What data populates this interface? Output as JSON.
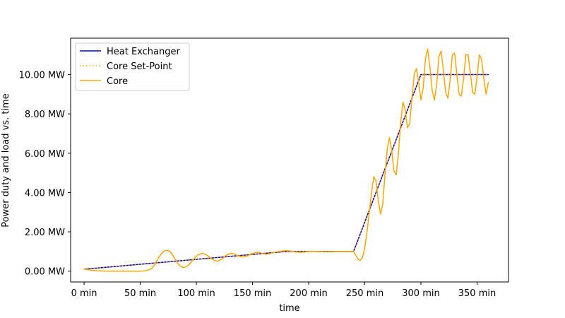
{
  "chart_data": {
    "type": "line",
    "title": "",
    "xlabel": "time",
    "ylabel": "Power duty and load vs. time",
    "xlim": [
      -12,
      378
    ],
    "ylim": [
      -0.55,
      11.85
    ],
    "grid": false,
    "legend_position": "upper-left",
    "x_ticks": [
      0,
      50,
      100,
      150,
      200,
      250,
      300,
      350
    ],
    "x_tick_labels": [
      "0 min",
      "50 min",
      "100 min",
      "150 min",
      "200 min",
      "250 min",
      "300 min",
      "350 min"
    ],
    "y_ticks": [
      0,
      2,
      4,
      6,
      8,
      10
    ],
    "y_tick_labels": [
      "0.00 MW",
      "2.00 MW",
      "4.00 MW",
      "6.00 MW",
      "8.00 MW",
      "10.00 MW"
    ],
    "series": [
      {
        "name": "Heat Exchanger",
        "color": "#0000cc",
        "style": "solid",
        "x": [
          0,
          180,
          240,
          300,
          360
        ],
        "y": [
          0.1,
          1.0,
          1.0,
          10.0,
          10.0
        ]
      },
      {
        "name": "Core Set-Point",
        "color": "#ffa500",
        "style": "dotted",
        "x": [
          0,
          180,
          240,
          300,
          360
        ],
        "y": [
          0.1,
          1.0,
          1.0,
          10.0,
          10.0
        ]
      },
      {
        "name": "Core",
        "color": "#ffa500",
        "style": "solid",
        "x": [
          0,
          10,
          20,
          30,
          40,
          50,
          55,
          60,
          63,
          66,
          69,
          72,
          75,
          78,
          81,
          84,
          87,
          90,
          93,
          96,
          99,
          102,
          105,
          108,
          111,
          114,
          117,
          120,
          123,
          126,
          129,
          132,
          135,
          138,
          141,
          144,
          147,
          150,
          153,
          156,
          159,
          162,
          165,
          168,
          171,
          174,
          177,
          180,
          184,
          188,
          192,
          196,
          200,
          204,
          208,
          212,
          216,
          220,
          225,
          230,
          235,
          240,
          242,
          244,
          246,
          248,
          250,
          252,
          254,
          256,
          258,
          260,
          262,
          264,
          266,
          268,
          270,
          272,
          274,
          276,
          278,
          280,
          282,
          284,
          286,
          288,
          290,
          292,
          294,
          296,
          298,
          300,
          302,
          304,
          306,
          308,
          310,
          312,
          314,
          316,
          318,
          320,
          322,
          324,
          326,
          328,
          330,
          332,
          334,
          336,
          338,
          340,
          342,
          344,
          346,
          348,
          350,
          352,
          354,
          356,
          358,
          360
        ],
        "y": [
          0.1,
          0.02,
          0.0,
          0.0,
          0.0,
          0.0,
          0.02,
          0.12,
          0.35,
          0.65,
          0.9,
          1.05,
          1.05,
          0.9,
          0.62,
          0.35,
          0.2,
          0.2,
          0.3,
          0.5,
          0.7,
          0.85,
          0.9,
          0.86,
          0.75,
          0.6,
          0.52,
          0.52,
          0.62,
          0.78,
          0.88,
          0.9,
          0.85,
          0.76,
          0.72,
          0.74,
          0.82,
          0.9,
          0.95,
          0.95,
          0.9,
          0.86,
          0.88,
          0.93,
          0.98,
          1.0,
          1.02,
          1.05,
          1.02,
          0.98,
          0.96,
          0.97,
          1.0,
          1.01,
          1.0,
          0.99,
          0.98,
          0.99,
          1.0,
          1.0,
          1.0,
          1.0,
          0.8,
          0.6,
          0.55,
          0.7,
          1.2,
          2.0,
          3.0,
          4.0,
          4.8,
          4.6,
          3.6,
          2.9,
          3.4,
          4.9,
          6.2,
          6.8,
          6.1,
          5.1,
          4.9,
          6.0,
          7.6,
          8.6,
          8.2,
          7.3,
          7.5,
          8.8,
          10.0,
          10.3,
          9.6,
          8.7,
          9.3,
          10.8,
          11.3,
          10.4,
          9.2,
          8.7,
          9.5,
          10.9,
          11.2,
          10.2,
          9.1,
          8.8,
          9.7,
          11.0,
          11.1,
          10.0,
          9.0,
          8.9,
          9.8,
          11.0,
          11.0,
          10.1,
          9.1,
          9.0,
          9.9,
          11.0,
          10.8,
          9.8,
          9.0,
          9.6
        ]
      }
    ]
  }
}
